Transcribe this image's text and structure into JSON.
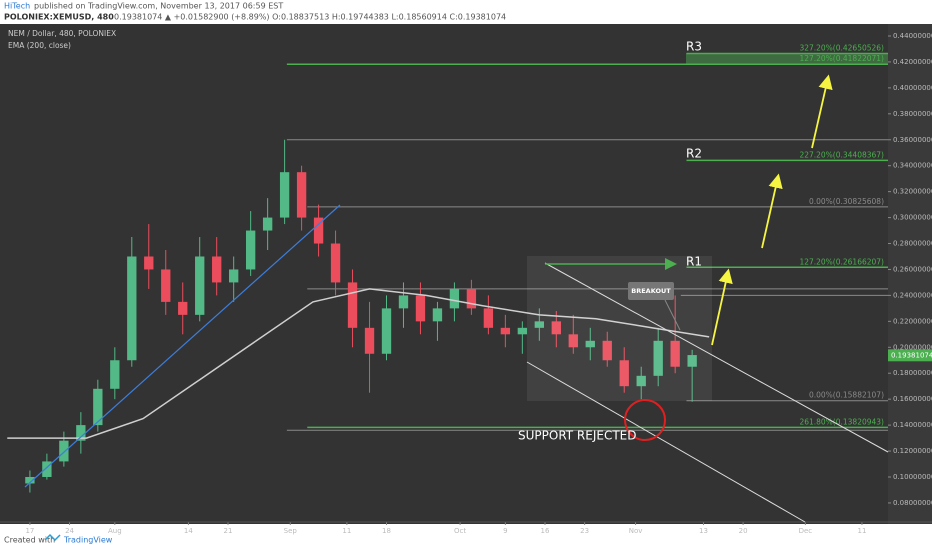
{
  "header": {
    "author": "HiTech",
    "published": "published on TradingView.com, November 13, 2017 06:59 EST",
    "symbol": "POLONIEX:XEMUSD, 480",
    "quote": "0.19381074 ▲ +0.01582900 (+8.89%) O:0.18837513 H:0.19744383 L:0.18560914 C:0.19381074"
  },
  "annotations": {
    "r1": "R1",
    "r2": "R2",
    "r3": "R3",
    "breakout": "BREAKOUT",
    "support": "SUPPORT REJECTED"
  },
  "footer": {
    "created": "Created with",
    "brand": "TradingView"
  },
  "chart_data": {
    "type": "candlestick",
    "title": "NEM / Dollar, 480, POLONIEX",
    "up_color": "#53b987",
    "down_color": "#eb4d5c",
    "x": [
      0,
      3,
      6,
      9,
      12,
      15,
      18,
      21,
      24,
      27,
      30,
      33,
      36,
      39,
      42,
      45,
      48,
      51,
      54,
      57,
      60,
      63,
      66,
      69,
      72,
      75,
      78,
      81,
      84,
      87,
      90,
      93,
      96,
      99,
      102,
      105,
      108,
      111,
      114,
      117
    ],
    "open": [
      0.095,
      0.1,
      0.112,
      0.128,
      0.14,
      0.168,
      0.19,
      0.27,
      0.26,
      0.235,
      0.225,
      0.27,
      0.25,
      0.26,
      0.29,
      0.3,
      0.335,
      0.3,
      0.28,
      0.25,
      0.215,
      0.195,
      0.23,
      0.24,
      0.22,
      0.23,
      0.245,
      0.23,
      0.215,
      0.21,
      0.215,
      0.22,
      0.21,
      0.2,
      0.205,
      0.19,
      0.17,
      0.178,
      0.205,
      0.185
    ],
    "high": [
      0.105,
      0.118,
      0.135,
      0.15,
      0.175,
      0.2,
      0.285,
      0.295,
      0.275,
      0.25,
      0.285,
      0.285,
      0.27,
      0.305,
      0.315,
      0.36,
      0.34,
      0.31,
      0.29,
      0.26,
      0.235,
      0.24,
      0.25,
      0.25,
      0.235,
      0.25,
      0.252,
      0.24,
      0.225,
      0.22,
      0.23,
      0.228,
      0.225,
      0.215,
      0.212,
      0.2,
      0.185,
      0.215,
      0.24,
      0.198
    ],
    "low": [
      0.088,
      0.098,
      0.108,
      0.118,
      0.135,
      0.16,
      0.185,
      0.245,
      0.225,
      0.21,
      0.22,
      0.24,
      0.235,
      0.255,
      0.275,
      0.295,
      0.29,
      0.27,
      0.24,
      0.2,
      0.165,
      0.19,
      0.215,
      0.21,
      0.205,
      0.22,
      0.225,
      0.21,
      0.2,
      0.195,
      0.205,
      0.2,
      0.195,
      0.19,
      0.185,
      0.165,
      0.16,
      0.17,
      0.18,
      0.158
    ],
    "close": [
      0.1,
      0.112,
      0.128,
      0.14,
      0.168,
      0.19,
      0.27,
      0.26,
      0.235,
      0.225,
      0.27,
      0.25,
      0.26,
      0.29,
      0.3,
      0.335,
      0.3,
      0.28,
      0.25,
      0.215,
      0.195,
      0.23,
      0.24,
      0.22,
      0.23,
      0.245,
      0.23,
      0.215,
      0.21,
      0.215,
      0.22,
      0.21,
      0.2,
      0.205,
      0.19,
      0.17,
      0.178,
      0.205,
      0.185,
      0.194
    ],
    "ema": {
      "name": "EMA (200, close)",
      "color": "#cfcfcf",
      "x": [
        -4,
        10,
        20,
        30,
        40,
        50,
        60,
        70,
        80,
        90,
        100,
        110,
        120
      ],
      "values": [
        0.13,
        0.13,
        0.145,
        0.175,
        0.205,
        0.235,
        0.245,
        0.24,
        0.232,
        0.225,
        0.222,
        0.215,
        0.208
      ]
    },
    "xlim": [
      -4.4,
      151.6
    ],
    "xticks": [
      {
        "value": 0,
        "label": "17"
      },
      {
        "value": 7,
        "label": "24"
      },
      {
        "value": 15,
        "label": "Aug"
      },
      {
        "value": 28,
        "label": "14"
      },
      {
        "value": 35,
        "label": "21"
      },
      {
        "value": 46,
        "label": "Sep"
      },
      {
        "value": 56,
        "label": "11"
      },
      {
        "value": 63,
        "label": "18"
      },
      {
        "value": 76,
        "label": "Oct"
      },
      {
        "value": 84,
        "label": "9"
      },
      {
        "value": 91,
        "label": "16"
      },
      {
        "value": 98,
        "label": "23"
      },
      {
        "value": 107,
        "label": "Nov"
      },
      {
        "value": 119,
        "label": "13"
      },
      {
        "value": 126,
        "label": "20"
      },
      {
        "value": 137,
        "label": "Dec"
      },
      {
        "value": 147,
        "label": "11"
      }
    ],
    "ylim": [
      0.0653,
      0.4477
    ],
    "yticks": [
      {
        "value": 0.08,
        "label": "0.08000000"
      },
      {
        "value": 0.1,
        "label": "0.10000000"
      },
      {
        "value": 0.12,
        "label": "0.12000000"
      },
      {
        "value": 0.14,
        "label": "0.14000000"
      },
      {
        "value": 0.16,
        "label": "0.16000000"
      },
      {
        "value": 0.18,
        "label": "0.18000000"
      },
      {
        "value": 0.2,
        "label": "0.20000000"
      },
      {
        "value": 0.22,
        "label": "0.22000000"
      },
      {
        "value": 0.24,
        "label": "0.24000000"
      },
      {
        "value": 0.26,
        "label": "0.26000000"
      },
      {
        "value": 0.28,
        "label": "0.28000000"
      },
      {
        "value": 0.3,
        "label": "0.30000000"
      },
      {
        "value": 0.32,
        "label": "0.32000000"
      },
      {
        "value": 0.34,
        "label": "0.34000000"
      },
      {
        "value": 0.36,
        "label": "0.36000000"
      },
      {
        "value": 0.38,
        "label": "0.38000000"
      },
      {
        "value": 0.4,
        "label": "0.40000000"
      },
      {
        "value": 0.42,
        "label": "0.42000000"
      },
      {
        "value": 0.44,
        "label": "0.44000000"
      }
    ],
    "last_price": 0.19381074,
    "last_color": "#4caf50",
    "levels": [
      {
        "value": 0.4265,
        "from": 116,
        "color": "#4caf50",
        "label": "327.20%(0.42650526)"
      },
      {
        "value": 0.41822071,
        "from": 45.4,
        "color": "#4caf50",
        "label": "127.20%(0.41822071)"
      },
      {
        "value": 0.36,
        "from": 45.4,
        "color": "#8a8a8a"
      },
      {
        "value": 0.34408367,
        "from": 116,
        "color": "#4caf50",
        "label": "227.20%(0.34408367)"
      },
      {
        "value": 0.30825608,
        "from": 49,
        "color": "#8a8a8a",
        "label": "0.00%(0.30825608)"
      },
      {
        "value": 0.26166207,
        "from": 116,
        "color": "#4caf50",
        "label": "127.20%(0.26166207)"
      },
      {
        "value": 0.245,
        "from": 49,
        "color": "#8a8a8a"
      },
      {
        "value": 0.24,
        "from": 115,
        "color": "#8a8a8a"
      },
      {
        "value": 0.15882107,
        "from": 116,
        "color": "#8a8a8a",
        "label": "0.00%(0.15882107)"
      },
      {
        "value": 0.13820943,
        "from": 49,
        "color": "#4caf50",
        "label": "261.80%(0.13820943)"
      },
      {
        "value": 0.136,
        "from": 45.4,
        "color": "#8a8a8a"
      }
    ]
  }
}
